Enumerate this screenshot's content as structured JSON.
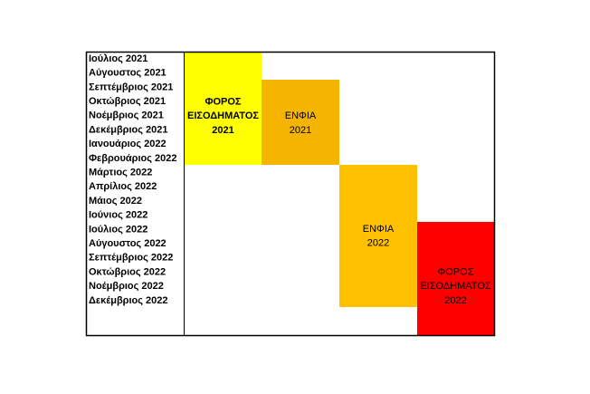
{
  "months": [
    "Ιούλιος 2021",
    "Αύγουστος 2021",
    "Σεπτέμβριος 2021",
    "Οκτώβριος 2021",
    "Νοέμβριος 2021",
    "Δεκέμβριος 2021",
    "Ιανουάριος 2022",
    "Φεβρουάριος 2022",
    "Μάρτιος 2022",
    "Απρίλιος 2022",
    "Μάιος 2022",
    "Ιούνιος 2022",
    "Ιούλιος 2022",
    "Αύγουστος 2022",
    "Σεπτέμβριος 2022",
    "Οκτώβριος 2022",
    "Νοέμβριος 2022",
    "Δεκέμβριος 2022"
  ],
  "blocks": [
    {
      "lines": [
        "ΦΟΡΟΣ",
        "ΕΙΣΟΔΗΜΑΤΟΣ",
        "2021"
      ]
    },
    {
      "lines": [
        "ΕΝΦΙΑ",
        "2021"
      ]
    },
    {
      "lines": [
        "ΕΝΦΙΑ",
        "2022"
      ]
    },
    {
      "lines": [
        "ΦΟΡΟΣ",
        "ΕΙΣΟΔΗΜΑΤΟΣ",
        "2022"
      ]
    }
  ]
}
